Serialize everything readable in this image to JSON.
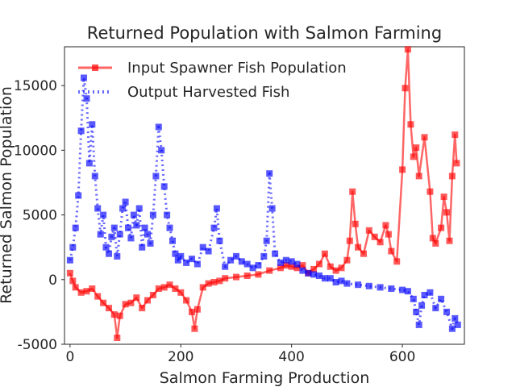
{
  "chart_data": {
    "type": "line",
    "title": "Returned Population with Salmon Farming",
    "xlabel": "Salmon Farming Production",
    "ylabel": "Returned Salmon Population",
    "xlim": [
      -10,
      712
    ],
    "ylim": [
      -5000,
      18000
    ],
    "x_ticks": [
      0,
      200,
      400,
      600
    ],
    "y_ticks": [
      -5000,
      0,
      5000,
      10000,
      15000
    ],
    "x_tick_labels": [
      "0",
      "200",
      "400",
      "600"
    ],
    "y_tick_labels": [
      "-5000",
      "0",
      "5000",
      "10000",
      "15000"
    ],
    "grid": false,
    "legend_position": "top-left",
    "series": [
      {
        "name": "Input Spawner Fish Population",
        "color": "#ff0000",
        "style": "solid line with square markers",
        "points": [
          [
            0,
            500
          ],
          [
            5,
            -100
          ],
          [
            10,
            -600
          ],
          [
            20,
            -1000
          ],
          [
            30,
            -900
          ],
          [
            40,
            -700
          ],
          [
            50,
            -1300
          ],
          [
            60,
            -1800
          ],
          [
            70,
            -2200
          ],
          [
            80,
            -2700
          ],
          [
            85,
            -4500
          ],
          [
            90,
            -2800
          ],
          [
            100,
            -1900
          ],
          [
            110,
            -1800
          ],
          [
            120,
            -1400
          ],
          [
            130,
            -2200
          ],
          [
            140,
            -1600
          ],
          [
            150,
            -1200
          ],
          [
            160,
            -700
          ],
          [
            170,
            -600
          ],
          [
            180,
            -400
          ],
          [
            190,
            -700
          ],
          [
            200,
            -1000
          ],
          [
            210,
            -1600
          ],
          [
            220,
            -2500
          ],
          [
            225,
            -3800
          ],
          [
            230,
            -2300
          ],
          [
            240,
            -600
          ],
          [
            250,
            -300
          ],
          [
            260,
            -200
          ],
          [
            270,
            -100
          ],
          [
            280,
            100
          ],
          [
            300,
            200
          ],
          [
            320,
            300
          ],
          [
            340,
            400
          ],
          [
            360,
            700
          ],
          [
            380,
            900
          ],
          [
            390,
            1100
          ],
          [
            400,
            1000
          ],
          [
            410,
            900
          ],
          [
            420,
            1100
          ],
          [
            430,
            500
          ],
          [
            440,
            800
          ],
          [
            450,
            1200
          ],
          [
            460,
            2000
          ],
          [
            470,
            1000
          ],
          [
            480,
            700
          ],
          [
            490,
            900
          ],
          [
            500,
            1500
          ],
          [
            505,
            3000
          ],
          [
            510,
            6800
          ],
          [
            515,
            4300
          ],
          [
            520,
            2500
          ],
          [
            530,
            2000
          ],
          [
            540,
            3800
          ],
          [
            550,
            3300
          ],
          [
            560,
            2900
          ],
          [
            570,
            4200
          ],
          [
            575,
            3500
          ],
          [
            580,
            2200
          ],
          [
            590,
            1400
          ],
          [
            600,
            8500
          ],
          [
            605,
            14800
          ],
          [
            610,
            17800
          ],
          [
            615,
            12000
          ],
          [
            620,
            9500
          ],
          [
            625,
            10200
          ],
          [
            630,
            8000
          ],
          [
            640,
            11000
          ],
          [
            650,
            6800
          ],
          [
            655,
            3200
          ],
          [
            660,
            2800
          ],
          [
            670,
            4000
          ],
          [
            675,
            6400
          ],
          [
            680,
            5200
          ],
          [
            685,
            3000
          ],
          [
            690,
            8000
          ],
          [
            695,
            11200
          ],
          [
            698,
            9000
          ]
        ]
      },
      {
        "name": "Output Harvested Fish",
        "color": "#0000ff",
        "style": "dotted line with square markers",
        "points": [
          [
            0,
            1500
          ],
          [
            5,
            2500
          ],
          [
            10,
            4000
          ],
          [
            15,
            6500
          ],
          [
            20,
            11500
          ],
          [
            25,
            15600
          ],
          [
            30,
            14000
          ],
          [
            35,
            9000
          ],
          [
            40,
            12000
          ],
          [
            45,
            8000
          ],
          [
            50,
            5500
          ],
          [
            55,
            3500
          ],
          [
            60,
            5000
          ],
          [
            65,
            2500
          ],
          [
            70,
            2000
          ],
          [
            75,
            3300
          ],
          [
            80,
            4000
          ],
          [
            85,
            1800
          ],
          [
            90,
            3500
          ],
          [
            95,
            5500
          ],
          [
            100,
            6000
          ],
          [
            105,
            4000
          ],
          [
            110,
            3200
          ],
          [
            115,
            5000
          ],
          [
            120,
            4200
          ],
          [
            125,
            5500
          ],
          [
            130,
            2500
          ],
          [
            135,
            4000
          ],
          [
            140,
            3500
          ],
          [
            145,
            2800
          ],
          [
            150,
            5000
          ],
          [
            155,
            8000
          ],
          [
            160,
            11800
          ],
          [
            165,
            10000
          ],
          [
            170,
            7200
          ],
          [
            175,
            5000
          ],
          [
            180,
            4000
          ],
          [
            185,
            3000
          ],
          [
            190,
            2000
          ],
          [
            195,
            1500
          ],
          [
            200,
            1800
          ],
          [
            210,
            1300
          ],
          [
            220,
            1600
          ],
          [
            230,
            1200
          ],
          [
            240,
            2500
          ],
          [
            250,
            2200
          ],
          [
            260,
            4000
          ],
          [
            265,
            5500
          ],
          [
            270,
            3000
          ],
          [
            280,
            1000
          ],
          [
            290,
            1500
          ],
          [
            300,
            1800
          ],
          [
            310,
            1400
          ],
          [
            320,
            1200
          ],
          [
            330,
            900
          ],
          [
            340,
            1100
          ],
          [
            350,
            1800
          ],
          [
            355,
            3000
          ],
          [
            360,
            8200
          ],
          [
            365,
            5500
          ],
          [
            370,
            2000
          ],
          [
            380,
            1300
          ],
          [
            390,
            1500
          ],
          [
            400,
            1400
          ],
          [
            410,
            1200
          ],
          [
            420,
            700
          ],
          [
            430,
            500
          ],
          [
            440,
            400
          ],
          [
            450,
            300
          ],
          [
            460,
            100
          ],
          [
            470,
            100
          ],
          [
            480,
            -200
          ],
          [
            490,
            -100
          ],
          [
            500,
            -300
          ],
          [
            520,
            -400
          ],
          [
            540,
            -500
          ],
          [
            560,
            -600
          ],
          [
            580,
            -700
          ],
          [
            600,
            -800
          ],
          [
            610,
            -900
          ],
          [
            620,
            -1500
          ],
          [
            625,
            -2500
          ],
          [
            630,
            -3500
          ],
          [
            635,
            -2000
          ],
          [
            640,
            -1200
          ],
          [
            650,
            -1000
          ],
          [
            660,
            -2200
          ],
          [
            670,
            -1500
          ],
          [
            680,
            -2500
          ],
          [
            690,
            -3800
          ],
          [
            695,
            -3000
          ],
          [
            700,
            -3500
          ]
        ]
      }
    ]
  }
}
